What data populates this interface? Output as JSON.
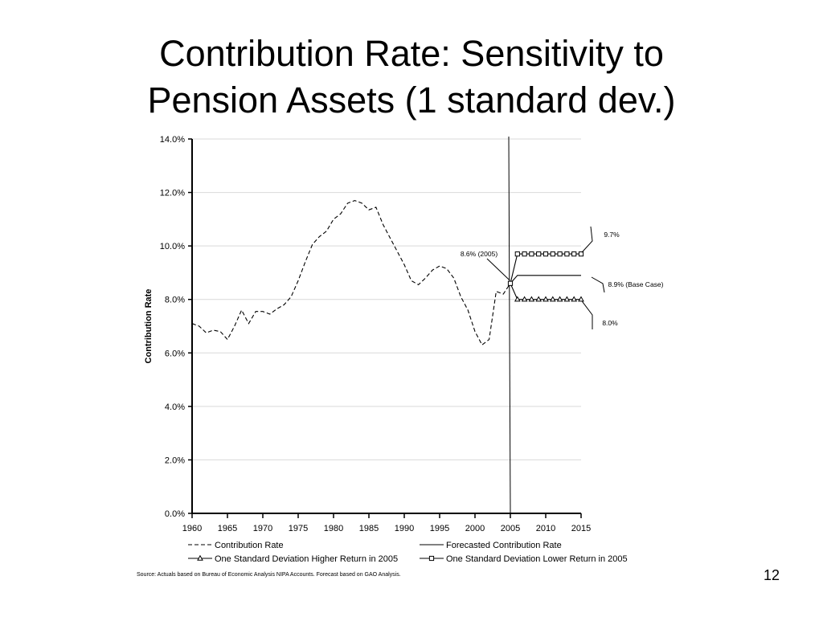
{
  "slide": {
    "title_line1": "Contribution Rate: Sensitivity to",
    "title_line2": "Pension Assets (1 standard dev.)",
    "source": "Source: Actuals based on Bureau of Economic Analysis NIPA Accounts.  Forecast based on GAO Analysis.",
    "page_number": "12"
  },
  "chart_data": {
    "type": "line",
    "ylabel": "Contribution Rate",
    "xlim": [
      1960,
      2015
    ],
    "ylim": [
      0,
      0.14
    ],
    "x_ticks": [
      1960,
      1965,
      1970,
      1975,
      1980,
      1985,
      1990,
      1995,
      2000,
      2005,
      2010,
      2015
    ],
    "x_tick_labels": [
      "1960",
      "1965",
      "1970",
      "1975",
      "1980",
      "1985",
      "1990",
      "1995",
      "2000",
      "2005",
      "2010",
      "2015"
    ],
    "y_ticks": [
      0,
      0.02,
      0.04,
      0.06,
      0.08,
      0.1,
      0.12,
      0.14
    ],
    "y_tick_labels": [
      "0.0%",
      "2.0%",
      "4.0%",
      "6.0%",
      "8.0%",
      "10.0%",
      "12.0%",
      "14.0%"
    ],
    "grid": "horizontal",
    "legend_position": "bottom",
    "series": [
      {
        "name": "Contribution Rate",
        "style": "dashed",
        "color": "#000000",
        "points": [
          [
            1960,
            0.071
          ],
          [
            1961,
            0.07
          ],
          [
            1962,
            0.0675
          ],
          [
            1963,
            0.0685
          ],
          [
            1964,
            0.068
          ],
          [
            1965,
            0.065
          ],
          [
            1966,
            0.07
          ],
          [
            1967,
            0.076
          ],
          [
            1968,
            0.071
          ],
          [
            1969,
            0.0755
          ],
          [
            1970,
            0.0755
          ],
          [
            1971,
            0.0745
          ],
          [
            1972,
            0.0765
          ],
          [
            1973,
            0.078
          ],
          [
            1974,
            0.081
          ],
          [
            1975,
            0.087
          ],
          [
            1976,
            0.094
          ],
          [
            1977,
            0.1005
          ],
          [
            1978,
            0.1035
          ],
          [
            1979,
            0.1055
          ],
          [
            1980,
            0.11
          ],
          [
            1981,
            0.112
          ],
          [
            1982,
            0.116
          ],
          [
            1983,
            0.117
          ],
          [
            1984,
            0.116
          ],
          [
            1985,
            0.1135
          ],
          [
            1986,
            0.1145
          ],
          [
            1987,
            0.108
          ],
          [
            1988,
            0.103
          ],
          [
            1989,
            0.098
          ],
          [
            1990,
            0.093
          ],
          [
            1991,
            0.087
          ],
          [
            1992,
            0.0855
          ],
          [
            1993,
            0.088
          ],
          [
            1994,
            0.091
          ],
          [
            1995,
            0.0925
          ],
          [
            1996,
            0.0915
          ],
          [
            1997,
            0.088
          ],
          [
            1998,
            0.081
          ],
          [
            1999,
            0.076
          ],
          [
            2000,
            0.068
          ],
          [
            2001,
            0.063
          ],
          [
            2002,
            0.065
          ],
          [
            2003,
            0.083
          ],
          [
            2004,
            0.082
          ],
          [
            2005,
            0.086
          ]
        ]
      },
      {
        "name": "Forecasted Contribution Rate",
        "style": "solid",
        "color": "#000000",
        "points": [
          [
            2005,
            0.086
          ],
          [
            2006,
            0.089
          ],
          [
            2007,
            0.089
          ],
          [
            2008,
            0.089
          ],
          [
            2009,
            0.089
          ],
          [
            2010,
            0.089
          ],
          [
            2011,
            0.089
          ],
          [
            2012,
            0.089
          ],
          [
            2013,
            0.089
          ],
          [
            2014,
            0.089
          ],
          [
            2015,
            0.089
          ]
        ]
      },
      {
        "name": "One Standard Deviation Higher Return in 2005",
        "style": "solid",
        "marker": "triangle",
        "color": "#000000",
        "points": [
          [
            2005,
            0.086
          ],
          [
            2006,
            0.08
          ],
          [
            2007,
            0.08
          ],
          [
            2008,
            0.08
          ],
          [
            2009,
            0.08
          ],
          [
            2010,
            0.08
          ],
          [
            2011,
            0.08
          ],
          [
            2012,
            0.08
          ],
          [
            2013,
            0.08
          ],
          [
            2014,
            0.08
          ],
          [
            2015,
            0.08
          ]
        ]
      },
      {
        "name": "One Standard Deviation Lower Return in 2005",
        "style": "solid",
        "marker": "square",
        "color": "#000000",
        "points": [
          [
            2005,
            0.086
          ],
          [
            2006,
            0.097
          ],
          [
            2007,
            0.097
          ],
          [
            2008,
            0.097
          ],
          [
            2009,
            0.097
          ],
          [
            2010,
            0.097
          ],
          [
            2011,
            0.097
          ],
          [
            2012,
            0.097
          ],
          [
            2013,
            0.097
          ],
          [
            2014,
            0.097
          ],
          [
            2015,
            0.097
          ]
        ]
      }
    ],
    "divider_year": 2005,
    "annotations": [
      {
        "text": "8.6% (2005)",
        "x": 2005,
        "y": 0.086,
        "target": "point"
      },
      {
        "text": "9.7%",
        "x": 2015,
        "y": 0.097,
        "target": "lower-return-end"
      },
      {
        "text": "8.9% (Base Case)",
        "x": 2015,
        "y": 0.089,
        "target": "forecast-end"
      },
      {
        "text": "8.0%",
        "x": 2015,
        "y": 0.08,
        "target": "higher-return-end"
      }
    ]
  }
}
